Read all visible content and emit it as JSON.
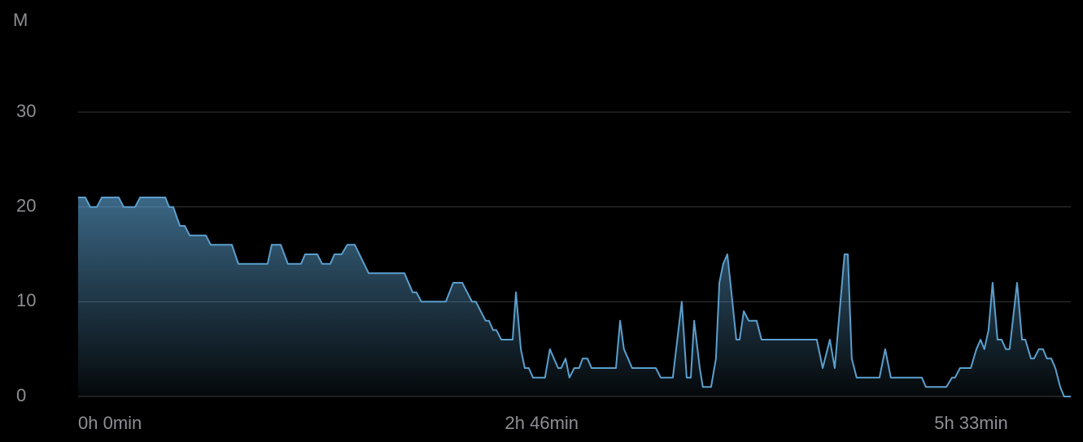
{
  "chart_data": {
    "type": "area",
    "y_label": "M",
    "x": [
      0,
      2.8,
      4.7,
      7.3,
      9.2,
      15.8,
      17.7,
      22.2,
      24.1,
      33.9,
      35.4,
      37.0,
      39.6,
      41.5,
      43.4,
      49.7,
      51.6,
      59.8,
      62.3,
      73.7,
      75.3,
      78.8,
      81.6,
      86.7,
      88.3,
      93.0,
      94.9,
      98.1,
      99.7,
      102.5,
      104.7,
      107.6,
      113.0,
      126.9,
      130.1,
      131.6,
      133.5,
      143.0,
      145.9,
      149.4,
      153.2,
      154.7,
      158.5,
      159.8,
      161.4,
      162.7,
      164.6,
      169.0,
      170.3,
      172.2,
      173.7,
      175.3,
      176.9,
      181.6,
      183.5,
      186.7,
      187.9,
      189.6,
      191.1,
      193.0,
      194.9,
      196.2,
      198.1,
      199.7,
      209.2,
      210.8,
      212.3,
      215.5,
      224.7,
      226.6,
      231.3,
      234.8,
      236.7,
      238.3,
      239.6,
      241.8,
      243.0,
      246.2,
      248.1,
      249.4,
      250.9,
      252.5,
      254.1,
      256.0,
      257.3,
      258.9,
      260.8,
      263.9,
      265.8,
      287.3,
      289.6,
      292.4,
      294.3,
      298.1,
      299.4,
      300.9,
      302.8,
      311.7,
      313.9,
      316.1,
      328.2,
      329.7,
      337.7,
      339.9,
      341.1,
      343.0,
      347.2,
      349.4,
      351.0,
      352.5,
      354.1,
      355.7,
      357.6,
      359.2,
      360.8,
      362.3,
      365.2,
      367.1,
      368.4,
      370.6,
      371.8,
      373.7,
      375.3,
      376.8,
      378.5,
      380.1,
      382.0,
      383.5,
      386.1
    ],
    "values": [
      21,
      21,
      20,
      20,
      21,
      21,
      20,
      20,
      21,
      21,
      20,
      20,
      18,
      18,
      17,
      17,
      16,
      16,
      14,
      14,
      16,
      16,
      14,
      14,
      15,
      15,
      14,
      14,
      15,
      15,
      16,
      16,
      13,
      13,
      11,
      11,
      10,
      10,
      12,
      12,
      10,
      10,
      8,
      8,
      7,
      7,
      6,
      6,
      11,
      5,
      3,
      3,
      2,
      2,
      5,
      3,
      3,
      4,
      2,
      3,
      3,
      4,
      4,
      3,
      3,
      8,
      5,
      3,
      3,
      2,
      2,
      10,
      2,
      2,
      8,
      3,
      1,
      1,
      4,
      12,
      14,
      15,
      11,
      6,
      6,
      9,
      8,
      8,
      6,
      6,
      3,
      6,
      3,
      15,
      15,
      4,
      2,
      2,
      5,
      2,
      2,
      1,
      1,
      2,
      2,
      3,
      3,
      5,
      6,
      5,
      7,
      12,
      6,
      6,
      5,
      5,
      12,
      6,
      6,
      4,
      4,
      5,
      5,
      4,
      4,
      3,
      1,
      0,
      0
    ],
    "color": "#5b9fcd",
    "xlim": [
      0,
      386.1
    ],
    "ylim": [
      0,
      30
    ],
    "yticks": [
      0,
      10,
      20,
      30
    ],
    "xticks": [
      {
        "value": 0,
        "label": "0h 0min"
      },
      {
        "value": 166,
        "label": "2h 46min"
      },
      {
        "value": 333,
        "label": "5h 33min"
      }
    ],
    "grid": true
  }
}
